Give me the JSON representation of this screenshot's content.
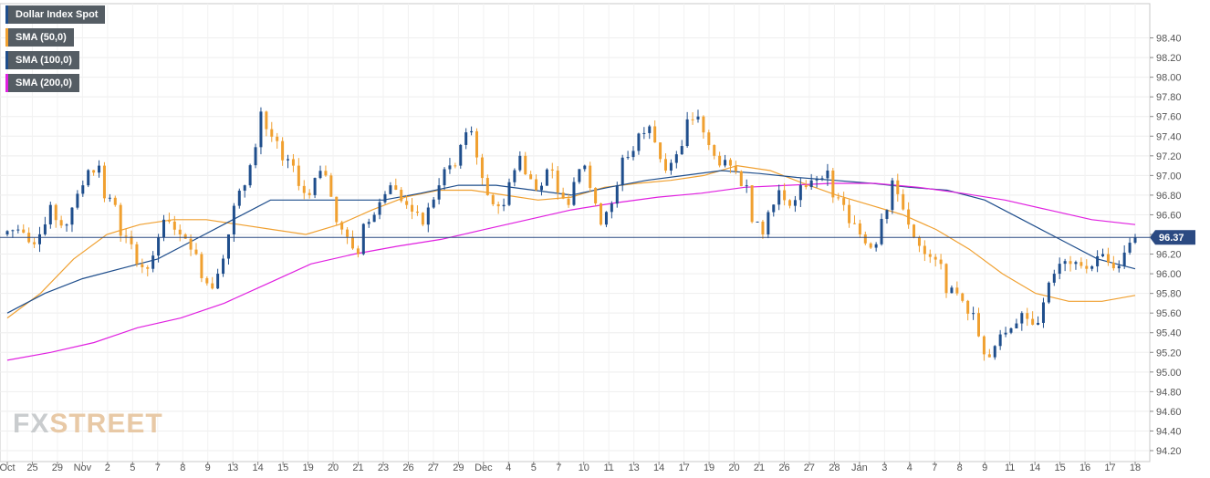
{
  "legend": {
    "items": [
      {
        "label": "Dollar Index Spot",
        "color": "#1f4e8c"
      },
      {
        "label": "SMA (50,0)",
        "color": "#f0a030"
      },
      {
        "label": "SMA (100,0)",
        "color": "#1f4e8c"
      },
      {
        "label": "SMA (200,0)",
        "color": "#e020e0"
      }
    ]
  },
  "watermark": {
    "part1": "FX",
    "part2": "STREET"
  },
  "chart_data": {
    "type": "candlestick",
    "title": "Dollar Index Spot",
    "ylim": [
      94.2,
      98.6
    ],
    "y_ticks": [
      98.4,
      98.2,
      98.0,
      97.8,
      97.6,
      97.4,
      97.2,
      97.0,
      96.8,
      96.6,
      96.4,
      96.2,
      96.0,
      95.8,
      95.6,
      95.4,
      95.2,
      95.0,
      94.8,
      94.6,
      94.4,
      94.2
    ],
    "x_ticks": [
      "Oct",
      "25",
      "29",
      "Nov",
      "2",
      "5",
      "7",
      "8",
      "9",
      "13",
      "14",
      "15",
      "19",
      "20",
      "21",
      "23",
      "26",
      "27",
      "29",
      "Dec",
      "4",
      "5",
      "7",
      "10",
      "11",
      "13",
      "14",
      "17",
      "19",
      "20",
      "21",
      "26",
      "27",
      "28",
      "Jan",
      "3",
      "4",
      "7",
      "8",
      "9",
      "11",
      "14",
      "15",
      "16",
      "17",
      "18"
    ],
    "last_price": "96.37",
    "last_value": 96.37,
    "grid": true,
    "legend_position": "top-left",
    "candle_colors": {
      "up": "#1f4e8c",
      "down": "#f0a030"
    },
    "close_series": [
      96.45,
      96.3,
      96.7,
      96.5,
      96.9,
      97.1,
      96.7,
      96.3,
      96.05,
      96.55,
      96.4,
      96.2,
      95.85,
      96.4,
      96.9,
      97.65,
      97.35,
      97.1,
      96.8,
      97.0,
      96.45,
      96.2,
      96.6,
      96.9,
      96.7,
      96.5,
      96.9,
      97.1,
      97.45,
      96.8,
      96.7,
      97.2,
      96.85,
      97.05,
      96.7,
      97.1,
      96.5,
      96.9,
      97.25,
      97.5,
      97.05,
      97.3,
      97.6,
      97.2,
      97.1,
      96.9,
      96.4,
      96.85,
      96.75,
      96.95,
      97.05,
      96.7,
      96.4,
      96.3,
      96.95,
      96.5,
      96.2,
      96.1,
      95.8,
      95.6,
      95.15,
      95.4,
      95.6,
      95.5,
      96.0,
      96.1,
      96.05,
      96.2,
      96.08,
      96.37
    ],
    "series": [
      {
        "name": "SMA (50,0)",
        "color": "#f0a030",
        "values": [
          95.55,
          95.8,
          96.15,
          96.4,
          96.5,
          96.55,
          96.55,
          96.5,
          96.45,
          96.4,
          96.5,
          96.65,
          96.78,
          96.85,
          96.85,
          96.8,
          96.75,
          96.78,
          96.88,
          96.92,
          96.95,
          97.0,
          97.1,
          97.05,
          96.92,
          96.8,
          96.7,
          96.6,
          96.45,
          96.25,
          96.0,
          95.8,
          95.72,
          95.72,
          95.78
        ]
      },
      {
        "name": "SMA (100,0)",
        "color": "#1f4e8c",
        "values": [
          95.6,
          95.8,
          95.95,
          96.05,
          96.15,
          96.35,
          96.55,
          96.75,
          96.75,
          96.75,
          96.75,
          96.82,
          96.9,
          96.9,
          96.85,
          96.8,
          96.88,
          96.95,
          97.0,
          97.05,
          97.02,
          96.98,
          96.95,
          96.92,
          96.88,
          96.85,
          96.75,
          96.55,
          96.35,
          96.15,
          96.05
        ]
      },
      {
        "name": "SMA (200,0)",
        "color": "#e020e0",
        "values": [
          95.12,
          95.2,
          95.3,
          95.45,
          95.55,
          95.7,
          95.9,
          96.1,
          96.2,
          96.28,
          96.35,
          96.45,
          96.55,
          96.65,
          96.72,
          96.78,
          96.82,
          96.88,
          96.9,
          96.92,
          96.92,
          96.88,
          96.82,
          96.75,
          96.65,
          96.55,
          96.5
        ]
      }
    ]
  }
}
